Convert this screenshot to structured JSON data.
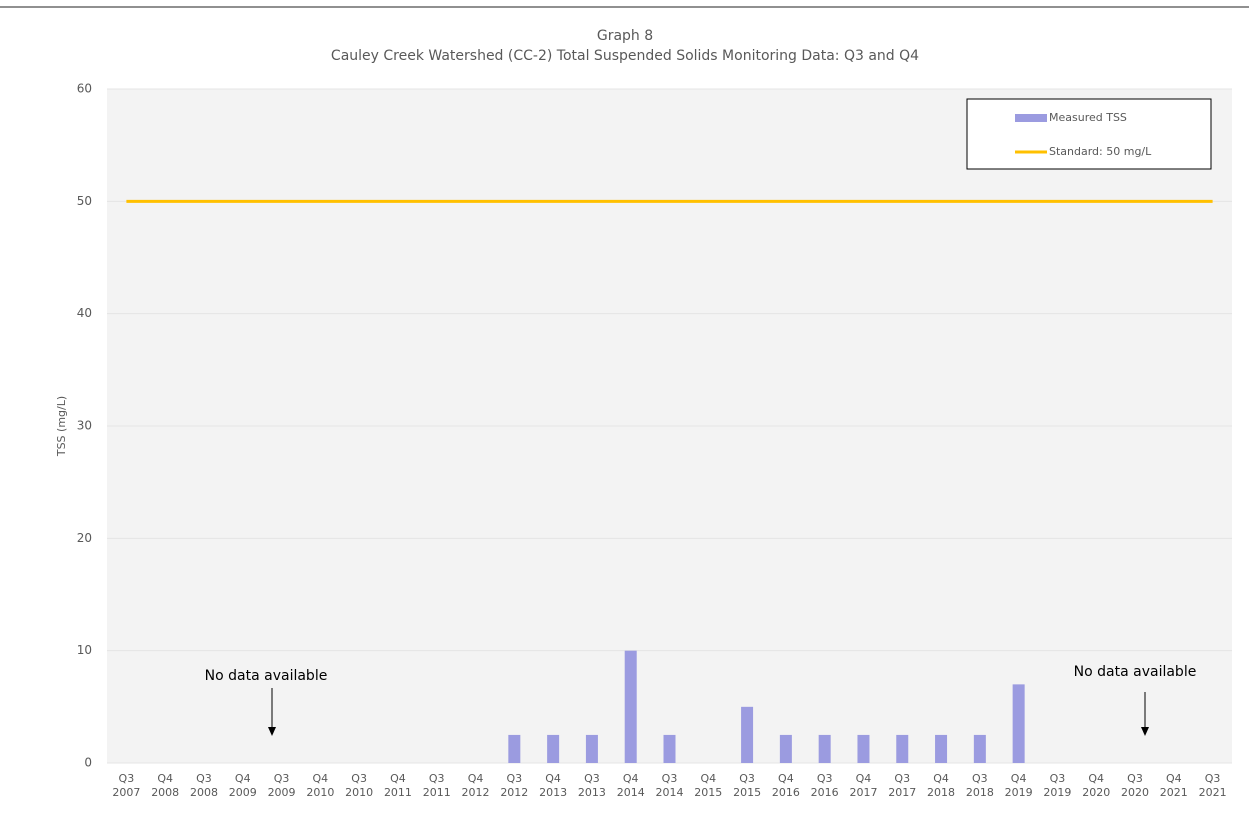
{
  "chart_data": {
    "type": "bar",
    "title": "Graph 8",
    "subtitle": "Cauley Creek Watershed (CC-2) Total Suspended Solids Monitoring Data: Q3 and Q4",
    "y_label": "TSS (mg/L)",
    "categories": [
      "Q3 2007",
      "Q4 2008",
      "Q3 2008",
      "Q4 2009",
      "Q3 2009",
      "Q4 2010",
      "Q3 2010",
      "Q4 2011",
      "Q3 2011",
      "Q4 2012",
      "Q3 2012",
      "Q4 2013",
      "Q3 2013",
      "Q4 2014",
      "Q3 2014",
      "Q4 2015",
      "Q3 2015",
      "Q4 2016",
      "Q3 2016",
      "Q4 2017",
      "Q3 2017",
      "Q4 2018",
      "Q3 2018",
      "Q4 2019",
      "Q3 2019",
      "Q4 2020",
      "Q3 2020",
      "Q4 2021",
      "Q3 2021"
    ],
    "series": [
      {
        "name": "Measured TSS",
        "type": "bar",
        "color": "#9b9be0",
        "values": [
          null,
          null,
          null,
          null,
          null,
          null,
          null,
          null,
          null,
          null,
          2.5,
          2.5,
          2.5,
          10,
          2.5,
          null,
          5,
          2.5,
          2.5,
          2.5,
          2.5,
          2.5,
          2.5,
          7,
          null,
          null,
          null,
          null,
          null
        ]
      },
      {
        "name": "Standard: 50 mg/L",
        "type": "line",
        "color": "#ffc000",
        "values": [
          50,
          50,
          50,
          50,
          50,
          50,
          50,
          50,
          50,
          50,
          50,
          50,
          50,
          50,
          50,
          50,
          50,
          50,
          50,
          50,
          50,
          50,
          50,
          50,
          50,
          50,
          50,
          50,
          50
        ]
      }
    ],
    "annotations": [
      "No data available",
      "No data available"
    ],
    "ylim": [
      0,
      60
    ],
    "yticks": [
      0,
      10,
      20,
      30,
      40,
      50,
      60
    ],
    "grid": true,
    "legend": "top-right"
  }
}
